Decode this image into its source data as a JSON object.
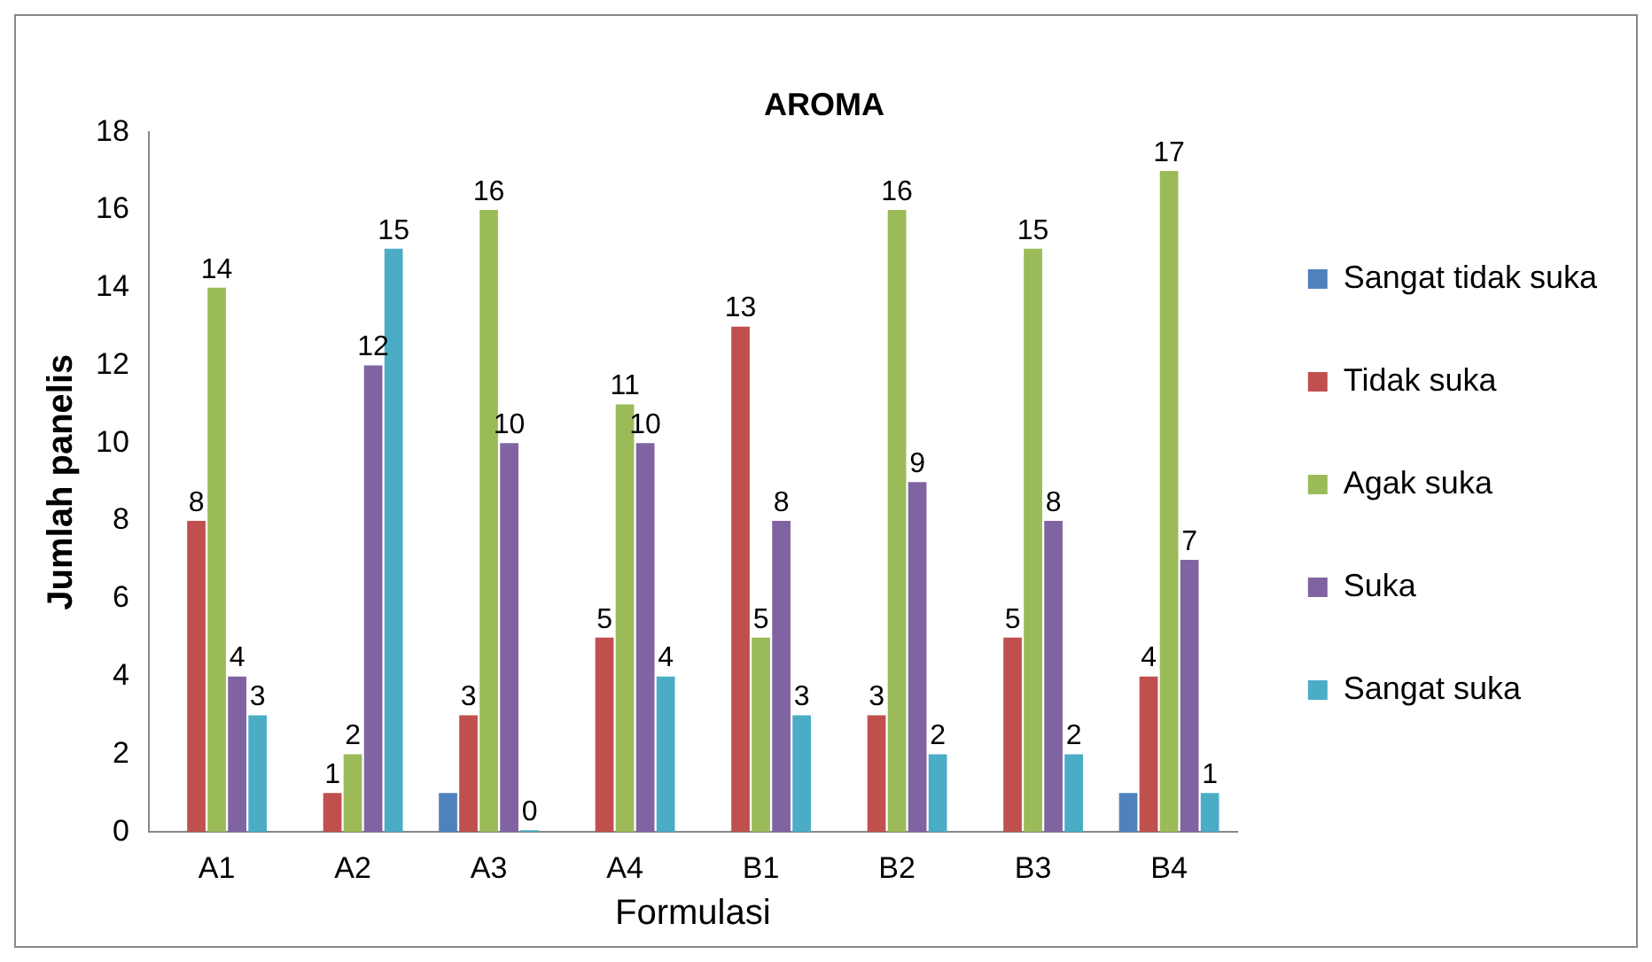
{
  "chart_data": {
    "type": "bar",
    "title": "AROMA",
    "xlabel": "Formulasi",
    "ylabel": "Jumlah panelis",
    "categories": [
      "A1",
      "A2",
      "A3",
      "A4",
      "B1",
      "B2",
      "B3",
      "B4"
    ],
    "series": [
      {
        "name": "Sangat tidak suka",
        "color": "#4f81bd",
        "values": [
          0,
          0,
          1,
          0,
          0,
          0,
          0,
          1
        ],
        "value_labels": [
          null,
          null,
          null,
          null,
          null,
          null,
          null,
          null
        ]
      },
      {
        "name": "Tidak suka",
        "color": "#c0504d",
        "values": [
          8,
          1,
          3,
          5,
          13,
          3,
          5,
          4
        ],
        "value_labels": [
          "8",
          "1",
          "3",
          "5",
          "13",
          "3",
          "5",
          "4"
        ]
      },
      {
        "name": "Agak suka",
        "color": "#9bbb59",
        "values": [
          14,
          2,
          16,
          11,
          5,
          16,
          15,
          17
        ],
        "value_labels": [
          "14",
          "2",
          "16",
          "11",
          "5",
          "16",
          "15",
          "17"
        ]
      },
      {
        "name": "Suka",
        "color": "#8064a2",
        "values": [
          4,
          12,
          10,
          10,
          8,
          9,
          8,
          7
        ],
        "value_labels": [
          "4",
          "12",
          "10",
          "10",
          "8",
          "9",
          "8",
          "7"
        ]
      },
      {
        "name": "Sangat suka",
        "color": "#4bacc6",
        "values": [
          3,
          15,
          0,
          4,
          3,
          2,
          2,
          1
        ],
        "value_labels": [
          "3",
          "15",
          "0",
          "4",
          "3",
          "2",
          "2",
          "1"
        ]
      }
    ],
    "ylim": [
      0,
      18
    ],
    "yticks": [
      0,
      2,
      4,
      6,
      8,
      10,
      12,
      14,
      16,
      18
    ],
    "grid": false,
    "legend": "right"
  }
}
